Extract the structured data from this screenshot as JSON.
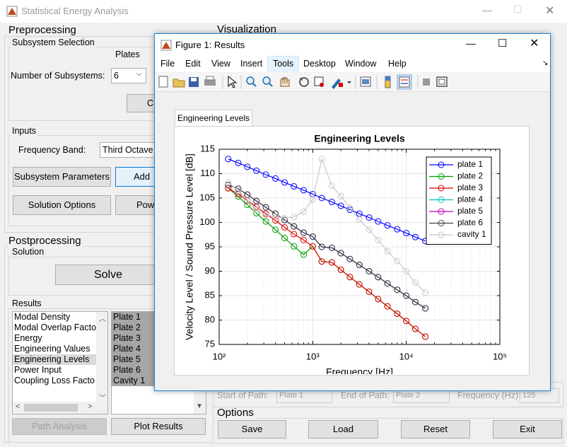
{
  "app": {
    "title": "Statistical Energy Analysis",
    "preprocessing": "Preprocessing",
    "subsystem_selection": "Subsystem Selection",
    "plates": "Plates",
    "num_subsystems_label": "Number of Subsystems:",
    "num_subsystems": "6",
    "calc_button": "C",
    "inputs": "Inputs",
    "frequency_band_label": "Frequency Band:",
    "frequency_band": "Third Octave",
    "subsystem_parameters": "Subsystem Parameters",
    "add_button": "Add",
    "solution_options": "Solution Options",
    "power_button": "Pow",
    "visualization": "Visualization",
    "postprocessing": "Postprocessing",
    "solution": "Solution",
    "solve": "Solve",
    "results": "Results",
    "result_types": [
      "Modal Density",
      "Modal Overlap Factor",
      "Energy",
      "Engineering Values",
      "Engineering Levels",
      "Power Input",
      "Coupling Loss Facto"
    ],
    "result_types_selected": 4,
    "result_items": [
      "Plate 1",
      "Plate 2",
      "Plate 3",
      "Plate 4",
      "Plate 5",
      "Plate 6",
      "Cavity 1"
    ],
    "path_analysis": "Path Analysis",
    "plot_results": "Plot Results",
    "start_of_path_label": "Start of Path:",
    "start_of_path": "Plate 1",
    "end_of_path_label": "End of Path:",
    "end_of_path": "Plate 2",
    "frequency_label": "Frequency (Hz):",
    "frequency": "125",
    "options": "Options",
    "save": "Save",
    "load": "Load",
    "reset": "Reset",
    "exit": "Exit"
  },
  "figure": {
    "title": "Figure 1: Results",
    "menu": [
      "File",
      "Edit",
      "View",
      "Insert",
      "Tools",
      "Desktop",
      "Window",
      "Help"
    ],
    "menu_selected": 4,
    "tab": "Engineering Levels"
  },
  "chart_data": {
    "type": "line",
    "title": "Engineering Levels",
    "xlabel": "Frequency [Hz]",
    "ylabel": "Velocity Level / Sound Pressure Level [dB]",
    "x": [
      125,
      160,
      200,
      250,
      315,
      400,
      500,
      630,
      800,
      1000,
      1250,
      1600,
      2000,
      2500,
      3150,
      4000,
      5000,
      6300,
      8000,
      10000,
      12500,
      16000
    ],
    "xscale": "log",
    "xlim": [
      100,
      100000
    ],
    "xticks": [
      {
        "value": 100,
        "label": "10²"
      },
      {
        "value": 1000,
        "label": "10³"
      },
      {
        "value": 10000,
        "label": "10⁴"
      },
      {
        "value": 100000,
        "label": "10⁵"
      }
    ],
    "ylim": [
      75,
      115
    ],
    "yticks": [
      75,
      80,
      85,
      90,
      95,
      100,
      105,
      110,
      115
    ],
    "grid": true,
    "minor_grid": true,
    "legend": "northeast",
    "marker": "o",
    "series": [
      {
        "name": "plate 1",
        "color": "#0000ff",
        "values": [
          113,
          112.2,
          111.4,
          110.6,
          109.8,
          109,
          108.2,
          107.4,
          106.6,
          105.8,
          105,
          104.2,
          103.4,
          102.6,
          101.8,
          101,
          100.2,
          99.4,
          98.6,
          97.8,
          97,
          96.2
        ]
      },
      {
        "name": "plate 2",
        "color": "#00a000",
        "values": [
          107,
          105.3,
          103.6,
          101.9,
          100.2,
          98.5,
          96.8,
          95.1,
          93.4,
          95.1,
          92,
          91.8,
          90.3,
          88.8,
          87.3,
          85.8,
          84.3,
          82.8,
          81.3,
          79.8,
          78.2,
          76.6
        ]
      },
      {
        "name": "plate 3",
        "color": "#e00000",
        "values": [
          107,
          105.8,
          104.5,
          103.2,
          101.8,
          100.4,
          99,
          97.6,
          96.4,
          95.1,
          92,
          91.8,
          90.3,
          88.8,
          87.3,
          85.8,
          84.3,
          82.8,
          81.3,
          79.8,
          78.2,
          76.6
        ]
      },
      {
        "name": "plate 4",
        "color": "#00bfbf",
        "values": [
          107.7,
          106.9,
          105.7,
          104.4,
          103.1,
          101.8,
          100.5,
          99.2,
          97.9,
          97.1,
          95,
          94.8,
          93.7,
          92.5,
          91.3,
          90,
          88.8,
          87.5,
          86.2,
          85,
          83.7,
          82.4
        ]
      },
      {
        "name": "plate 5",
        "color": "#bf00bf",
        "values": [
          107.7,
          106.9,
          105.7,
          104.4,
          103.1,
          101.8,
          100.5,
          99.2,
          97.9,
          97.1,
          95,
          94.8,
          93.7,
          92.5,
          91.3,
          90,
          88.8,
          87.5,
          86.2,
          85,
          83.7,
          82.4
        ]
      },
      {
        "name": "plate 6",
        "color": "#404040",
        "values": [
          107.7,
          106.9,
          105.7,
          104.4,
          103.1,
          101.8,
          100.5,
          99.2,
          97.9,
          97.1,
          95,
          94.8,
          93.7,
          92.5,
          91.3,
          90,
          88.8,
          87.5,
          86.2,
          85,
          83.7,
          82.4
        ]
      },
      {
        "name": "cavity 1",
        "color": "#c8c8c8",
        "values": [
          108.2,
          106.5,
          104.6,
          102.6,
          101.5,
          101.2,
          100.9,
          101.1,
          102.2,
          104.7,
          113,
          107.5,
          105.4,
          103,
          100.6,
          98.5,
          96.4,
          94.1,
          92.1,
          90,
          87.7,
          85.6
        ]
      }
    ]
  }
}
